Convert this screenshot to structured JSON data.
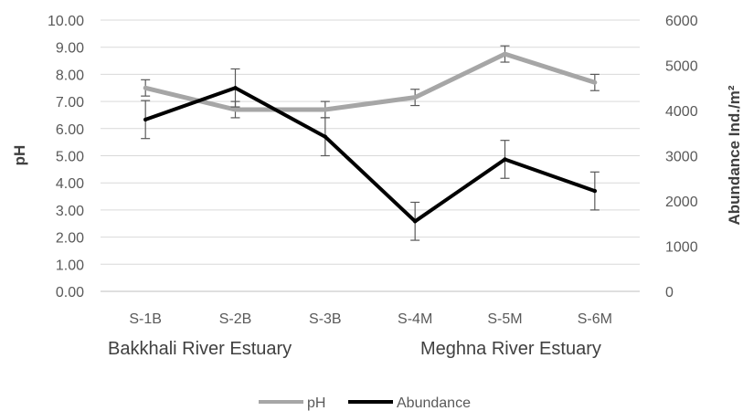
{
  "chart_data": {
    "type": "line",
    "categories": [
      "S-1B",
      "S-2B",
      "S-3B",
      "S-4M",
      "S-5M",
      "S-6M"
    ],
    "group_labels": [
      "Bakkhali River Estuary",
      "Meghna River Estuary"
    ],
    "series": [
      {
        "name": "pH",
        "axis": "left",
        "color": "#a6a6a6",
        "values": [
          7.5,
          6.7,
          6.7,
          7.15,
          8.75,
          7.7
        ],
        "error": [
          0.3,
          0.3,
          0.3,
          0.3,
          0.3,
          0.3
        ]
      },
      {
        "name": "Abundance",
        "axis": "right",
        "color": "#000000",
        "values": [
          3800,
          4500,
          3420,
          1550,
          2920,
          2220
        ],
        "error": [
          420,
          420,
          420,
          420,
          420,
          420
        ]
      }
    ],
    "ylabel": "pH",
    "ylabel_right": "Abundance Ind./m²",
    "ylim": [
      0,
      10
    ],
    "ylim_right": [
      0,
      6000
    ],
    "yticks": [
      "0.00",
      "1.00",
      "2.00",
      "3.00",
      "4.00",
      "5.00",
      "6.00",
      "7.00",
      "8.00",
      "9.00",
      "10.00"
    ],
    "yticks_right": [
      "0",
      "1000",
      "2000",
      "3000",
      "4000",
      "5000",
      "6000"
    ],
    "grid": true,
    "legend_position": "bottom"
  }
}
